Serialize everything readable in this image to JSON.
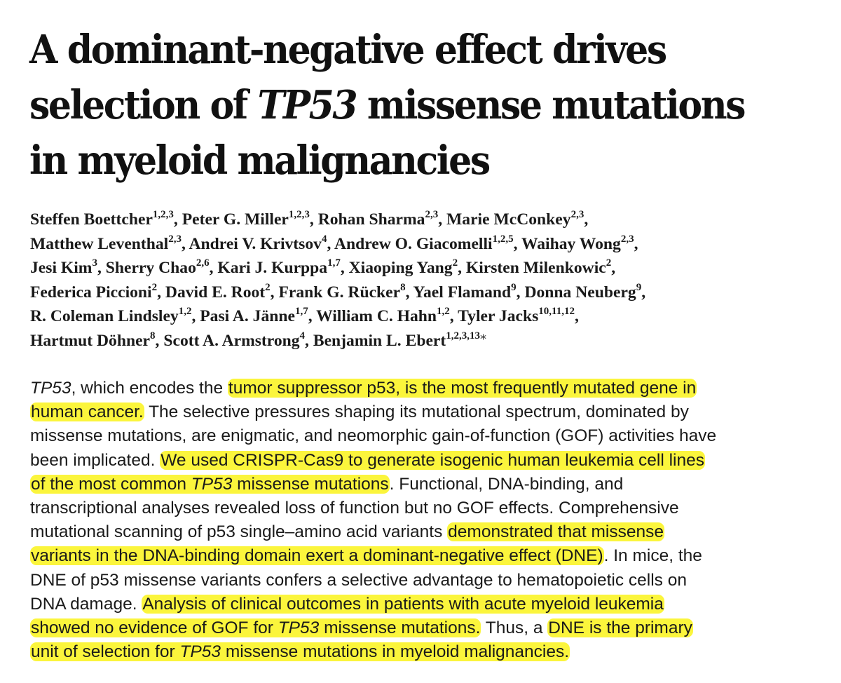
{
  "title": {
    "line1": "A dominant-negative effect drives",
    "line2_pre": "selection of ",
    "line2_gene": "TP53",
    "line2_post": " missense mutations",
    "line3": "in myeloid malignancies"
  },
  "authors": [
    {
      "name": "Steffen Boettcher",
      "aff": "1,2,3"
    },
    {
      "name": "Peter G. Miller",
      "aff": "1,2,3"
    },
    {
      "name": "Rohan Sharma",
      "aff": "2,3"
    },
    {
      "name": "Marie McConkey",
      "aff": "2,3"
    },
    {
      "name": "Matthew Leventhal",
      "aff": "2,3"
    },
    {
      "name": "Andrei V. Krivtsov",
      "aff": "4"
    },
    {
      "name": "Andrew O. Giacomelli",
      "aff": "1,2,5"
    },
    {
      "name": "Waihay Wong",
      "aff": "2,3"
    },
    {
      "name": "Jesi Kim",
      "aff": "3"
    },
    {
      "name": "Sherry Chao",
      "aff": "2,6"
    },
    {
      "name": "Kari J. Kurppa",
      "aff": "1,7"
    },
    {
      "name": "Xiaoping Yang",
      "aff": "2"
    },
    {
      "name": "Kirsten Milenkowic",
      "aff": "2"
    },
    {
      "name": "Federica Piccioni",
      "aff": "2"
    },
    {
      "name": "David E. Root",
      "aff": "2"
    },
    {
      "name": "Frank G. Rücker",
      "aff": "8"
    },
    {
      "name": "Yael Flamand",
      "aff": "9"
    },
    {
      "name": "Donna Neuberg",
      "aff": "9"
    },
    {
      "name": "R. Coleman Lindsley",
      "aff": "1,2"
    },
    {
      "name": "Pasi A. Jänne",
      "aff": "1,7"
    },
    {
      "name": "William C. Hahn",
      "aff": "1,2"
    },
    {
      "name": "Tyler Jacks",
      "aff": "10,11,12"
    },
    {
      "name": "Hartmut Döhner",
      "aff": "8"
    },
    {
      "name": "Scott A. Armstrong",
      "aff": "4"
    },
    {
      "name": "Benjamin L. Ebert",
      "aff": "1,2,3,13"
    }
  ],
  "corresponding_mark": "⁎",
  "abstract": {
    "s1": "TP53",
    "s2": ", which encodes the ",
    "s3": "tumor suppressor p53, is the most frequently mutated gene in",
    "s4": "human cancer.",
    "s5": " The selective pressures shaping its mutational spectrum, dominated by",
    "s6": "missense mutations, are enigmatic, and neomorphic gain-of-function (GOF) activities have",
    "s7": "been implicated. ",
    "s8": "We used CRISPR-Cas9 to generate isogenic human leukemia cell lines",
    "s9": "of the most common ",
    "s10": "TP53",
    "s11": " missense mutations",
    "s12": ". Functional, DNA-binding, and",
    "s13": "transcriptional analyses revealed loss of function but no GOF effects. Comprehensive",
    "s14": "mutational scanning of p53 single–amino acid variants ",
    "s15": "demonstrated that missense",
    "s16": "variants in the DNA-binding domain exert a dominant-negative effect (DNE)",
    "s17": ". In mice, the",
    "s18": "DNE of p53 missense variants confers a selective advantage to hematopoietic cells on",
    "s19": "DNA damage. ",
    "s20": "Analysis of clinical outcomes in patients with acute myeloid leukemia",
    "s21": "showed no evidence of GOF for ",
    "s22": "TP53",
    "s23": " missense mutations.",
    "s24": " Thus, a ",
    "s25": "DNE is the primary",
    "s26": "unit of selection for ",
    "s27": "TP53",
    "s28": " missense mutations in myeloid malignancies."
  },
  "highlight_color": "#fbf53c"
}
